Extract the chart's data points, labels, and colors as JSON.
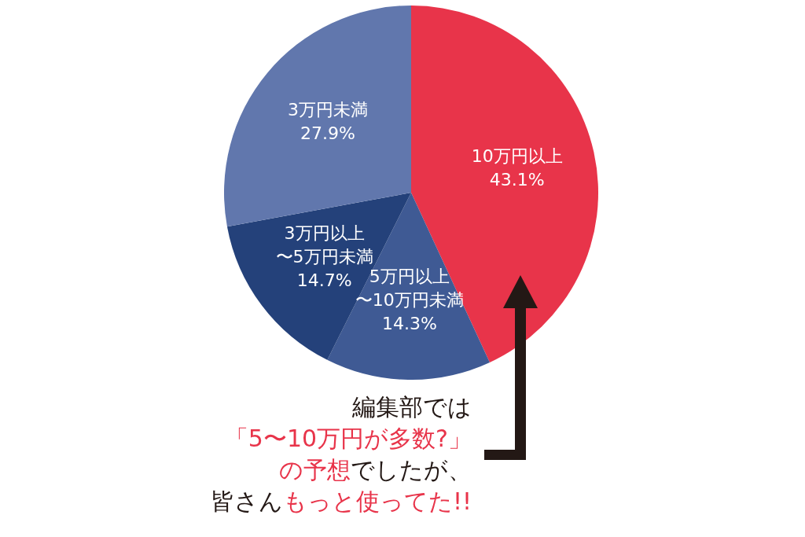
{
  "chart_data": {
    "type": "pie",
    "categories": [
      "10万円以上",
      "5万円以上〜10万円未満",
      "3万円以上〜5万円未満",
      "3万円未満"
    ],
    "values": [
      43.1,
      14.3,
      14.7,
      27.9
    ],
    "colors": [
      "#e8344a",
      "#3f5a94",
      "#24417a",
      "#6177ad"
    ],
    "value_labels": [
      "43.1%",
      "14.3%",
      "14.7%",
      "27.9%"
    ],
    "legend": false,
    "annotations": [
      "編集部では",
      "「5〜10万円が多数?」",
      "の予想",
      "でしたが、",
      "皆さん",
      "もっと使ってた!!"
    ]
  }
}
